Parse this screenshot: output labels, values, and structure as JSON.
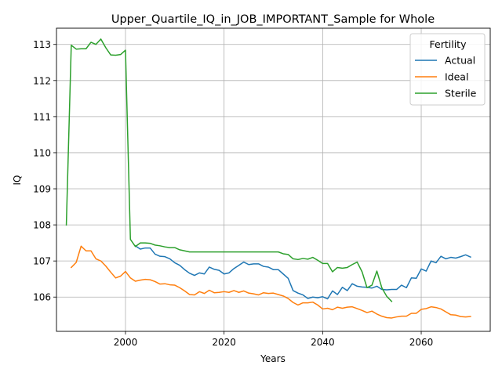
{
  "chart_data": {
    "type": "line",
    "title": "Upper_Quartile_IQ_in_JOB_IMPORTANT_Sample for Whole",
    "xlabel": "Years",
    "ylabel": "IQ",
    "xlim": [
      1986,
      2074
    ],
    "ylim": [
      105.05,
      113.45
    ],
    "xticks": [
      2000,
      2020,
      2040,
      2060
    ],
    "yticks": [
      106,
      107,
      108,
      109,
      110,
      111,
      112,
      113
    ],
    "grid": true,
    "legend": {
      "title": "Fertility",
      "placement": "top-right"
    },
    "series": [
      {
        "name": "Actual",
        "color": "#1f77b4",
        "x": [
          2002,
          2003,
          2004,
          2005,
          2006,
          2007,
          2008,
          2009,
          2010,
          2011,
          2012,
          2013,
          2014,
          2015,
          2016,
          2017,
          2018,
          2019,
          2020,
          2021,
          2022,
          2023,
          2024,
          2025,
          2026,
          2027,
          2028,
          2029,
          2030,
          2031,
          2032,
          2033,
          2034,
          2035,
          2036,
          2037,
          2038,
          2039,
          2040,
          2041,
          2042,
          2043,
          2044,
          2045,
          2046,
          2047,
          2048,
          2049,
          2050,
          2051,
          2052,
          2053,
          2054,
          2055,
          2056,
          2057,
          2058,
          2059,
          2060,
          2061,
          2062,
          2063,
          2064,
          2065,
          2066,
          2067,
          2068,
          2069,
          2070
        ],
        "values": [
          107.42,
          107.33,
          107.36,
          107.36,
          107.19,
          107.13,
          107.12,
          107.06,
          106.95,
          106.88,
          106.76,
          106.66,
          106.6,
          106.67,
          106.64,
          106.83,
          106.77,
          106.74,
          106.64,
          106.67,
          106.79,
          106.88,
          106.97,
          106.9,
          106.92,
          106.92,
          106.85,
          106.83,
          106.76,
          106.76,
          106.64,
          106.52,
          106.18,
          106.11,
          106.06,
          105.96,
          106.0,
          105.98,
          106.01,
          105.95,
          106.17,
          106.07,
          106.27,
          106.18,
          106.37,
          106.3,
          106.28,
          106.27,
          106.25,
          106.3,
          106.21,
          106.2,
          106.21,
          106.21,
          106.33,
          106.26,
          106.53,
          106.52,
          106.78,
          106.72,
          107.0,
          106.95,
          107.13,
          107.06,
          107.1,
          107.08,
          107.12,
          107.17,
          107.11
        ]
      },
      {
        "name": "Ideal",
        "color": "#ff7f0e",
        "x": [
          1989,
          1990,
          1991,
          1992,
          1993,
          1994,
          1995,
          1996,
          1997,
          1998,
          1999,
          2000,
          2001,
          2002,
          2003,
          2004,
          2005,
          2006,
          2007,
          2008,
          2009,
          2010,
          2011,
          2012,
          2013,
          2014,
          2015,
          2016,
          2017,
          2018,
          2019,
          2020,
          2021,
          2022,
          2023,
          2024,
          2025,
          2026,
          2027,
          2028,
          2029,
          2030,
          2031,
          2032,
          2033,
          2034,
          2035,
          2036,
          2037,
          2038,
          2039,
          2040,
          2041,
          2042,
          2043,
          2044,
          2045,
          2046,
          2047,
          2048,
          2049,
          2050,
          2051,
          2052,
          2053,
          2054,
          2055,
          2056,
          2057,
          2058,
          2059,
          2060,
          2061,
          2062,
          2063,
          2064,
          2065,
          2066,
          2067,
          2068,
          2069,
          2070
        ],
        "values": [
          106.82,
          106.96,
          107.41,
          107.28,
          107.28,
          107.06,
          107.0,
          106.86,
          106.69,
          106.53,
          106.58,
          106.71,
          106.53,
          106.44,
          106.47,
          106.49,
          106.48,
          106.43,
          106.36,
          106.37,
          106.34,
          106.33,
          106.26,
          106.17,
          106.07,
          106.06,
          106.15,
          106.1,
          106.19,
          106.12,
          106.13,
          106.15,
          106.13,
          106.18,
          106.13,
          106.17,
          106.11,
          106.09,
          106.06,
          106.12,
          106.1,
          106.11,
          106.07,
          106.03,
          105.96,
          105.85,
          105.78,
          105.84,
          105.84,
          105.86,
          105.78,
          105.67,
          105.69,
          105.65,
          105.72,
          105.69,
          105.72,
          105.73,
          105.68,
          105.63,
          105.57,
          105.61,
          105.53,
          105.47,
          105.43,
          105.42,
          105.45,
          105.47,
          105.47,
          105.55,
          105.55,
          105.66,
          105.68,
          105.73,
          105.71,
          105.67,
          105.59,
          105.51,
          105.5,
          105.46,
          105.45,
          105.46
        ]
      },
      {
        "name": "Sterile",
        "color": "#2ca02c",
        "x": [
          1988,
          1989,
          1990,
          1991,
          1992,
          1993,
          1994,
          1995,
          1996,
          1997,
          1998,
          1999,
          2000,
          2001,
          2002,
          2003,
          2004,
          2005,
          2006,
          2007,
          2008,
          2009,
          2010,
          2011,
          2012,
          2013,
          2014,
          2015,
          2016,
          2017,
          2018,
          2019,
          2020,
          2021,
          2022,
          2023,
          2024,
          2025,
          2026,
          2027,
          2028,
          2029,
          2030,
          2031,
          2032,
          2033,
          2034,
          2035,
          2036,
          2037,
          2038,
          2039,
          2040,
          2041,
          2042,
          2043,
          2044,
          2045,
          2046,
          2047,
          2048,
          2049,
          2050,
          2051,
          2052,
          2053,
          2054
        ],
        "values": [
          108.0,
          112.98,
          112.87,
          112.88,
          112.88,
          113.06,
          113.0,
          113.15,
          112.91,
          112.71,
          112.7,
          112.72,
          112.84,
          107.6,
          107.4,
          107.5,
          107.5,
          107.49,
          107.44,
          107.42,
          107.39,
          107.37,
          107.37,
          107.31,
          107.28,
          107.25,
          107.25,
          107.25,
          107.25,
          107.25,
          107.25,
          107.25,
          107.25,
          107.25,
          107.25,
          107.25,
          107.25,
          107.25,
          107.25,
          107.25,
          107.25,
          107.25,
          107.25,
          107.25,
          107.2,
          107.18,
          107.06,
          107.04,
          107.07,
          107.05,
          107.1,
          107.02,
          106.93,
          106.93,
          106.7,
          106.82,
          106.8,
          106.82,
          106.9,
          106.97,
          106.7,
          106.26,
          106.33,
          106.72,
          106.26,
          106.02,
          105.88
        ]
      }
    ]
  }
}
